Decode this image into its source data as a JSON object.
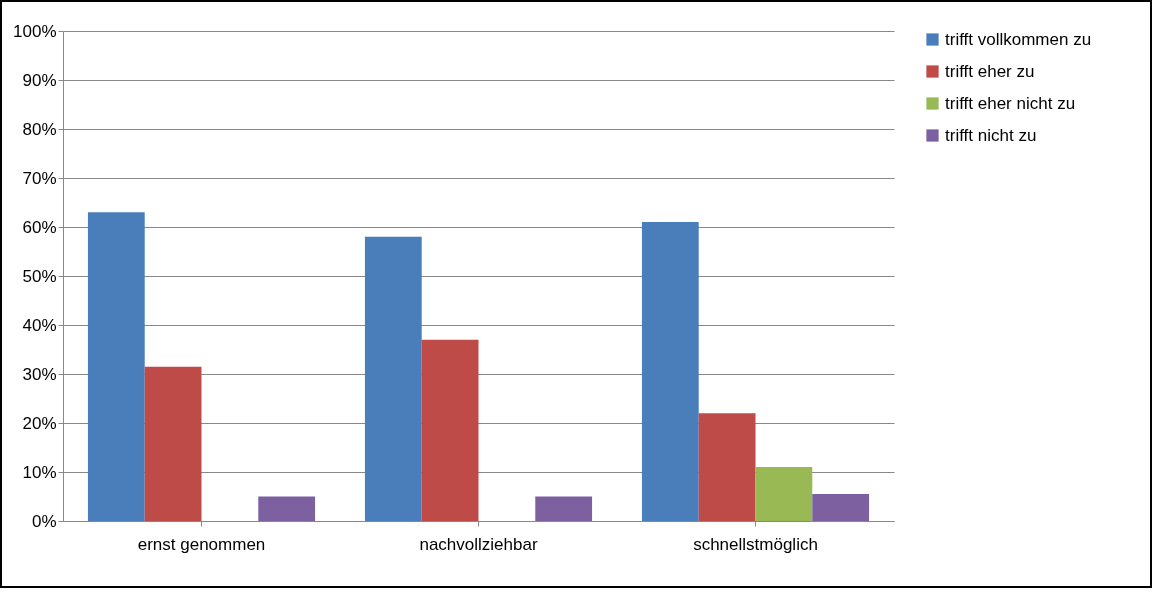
{
  "chart_data": {
    "type": "bar",
    "categories": [
      "ernst genommen",
      "nachvollziehbar",
      "schnellstmöglich"
    ],
    "series": [
      {
        "name": "trifft vollkommen zu",
        "color": "#4a7ebb",
        "values": [
          63,
          58,
          61
        ]
      },
      {
        "name": "trifft eher zu",
        "color": "#be4b48",
        "values": [
          31.5,
          37,
          22
        ]
      },
      {
        "name": "trifft eher nicht zu",
        "color": "#98b954",
        "values": [
          0,
          0,
          11
        ]
      },
      {
        "name": "trifft nicht zu",
        "color": "#7d60a0",
        "values": [
          5,
          5,
          5.5
        ]
      }
    ],
    "ylim": [
      0,
      100
    ],
    "yticks": [
      {
        "value": 0,
        "label": "0%"
      },
      {
        "value": 10,
        "label": "10%"
      },
      {
        "value": 20,
        "label": "20%"
      },
      {
        "value": 30,
        "label": "30%"
      },
      {
        "value": 40,
        "label": "40%"
      },
      {
        "value": 50,
        "label": "50%"
      },
      {
        "value": 60,
        "label": "60%"
      },
      {
        "value": 70,
        "label": "70%"
      },
      {
        "value": 80,
        "label": "80%"
      },
      {
        "value": 90,
        "label": "90%"
      },
      {
        "value": 100,
        "label": "100%"
      }
    ],
    "grid": "y",
    "legend": "right"
  }
}
